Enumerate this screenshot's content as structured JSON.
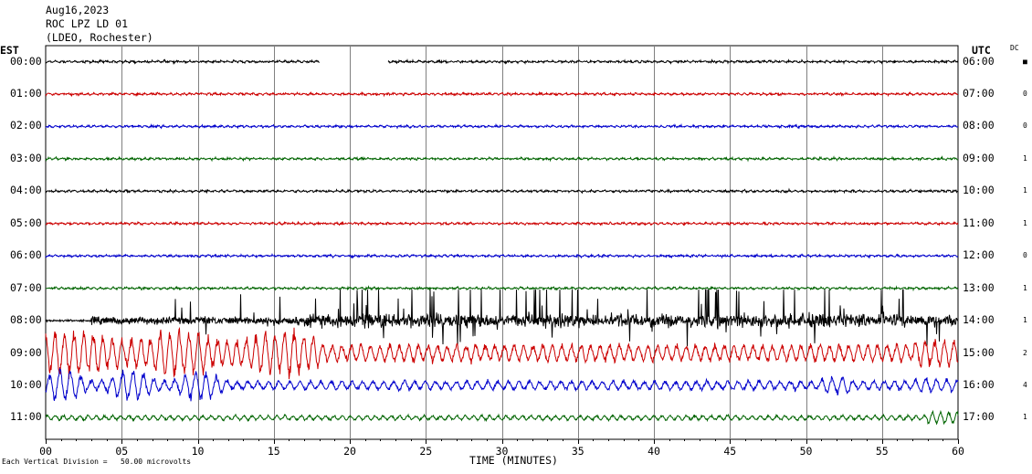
{
  "header": {
    "date": "Aug16,2023",
    "station": "ROC LPZ LD 01",
    "network": "(LDEO, Rochester)"
  },
  "left_zone_label": "EST",
  "right_zone_label": "UTC",
  "dc_header": "DC",
  "footnote": "Each Vertical Division =   50.00 microvolts",
  "chart_data": {
    "type": "line",
    "title": "ROC LPZ LD 01",
    "xlabel": "TIME (MINUTES)",
    "xlim": [
      0,
      60
    ],
    "x_ticks": [
      "00",
      "05",
      "10",
      "15",
      "20",
      "25",
      "30",
      "35",
      "40",
      "45",
      "50",
      "55",
      "60"
    ],
    "grid": true,
    "vertical_division_microvolts": 50.0,
    "traces": [
      {
        "est": "00:00",
        "utc": "06:00",
        "dc": "■",
        "color": "#000000",
        "gap": [
          18,
          22.5
        ],
        "activity": "quiet"
      },
      {
        "est": "01:00",
        "utc": "07:00",
        "dc": "0",
        "color": "#cc0000",
        "activity": "quiet"
      },
      {
        "est": "02:00",
        "utc": "08:00",
        "dc": "0",
        "color": "#0000cc",
        "activity": "quiet"
      },
      {
        "est": "03:00",
        "utc": "09:00",
        "dc": "1",
        "color": "#006400",
        "activity": "quiet"
      },
      {
        "est": "04:00",
        "utc": "10:00",
        "dc": "1",
        "color": "#000000",
        "activity": "quiet"
      },
      {
        "est": "05:00",
        "utc": "11:00",
        "dc": "1",
        "color": "#cc0000",
        "activity": "quiet"
      },
      {
        "est": "06:00",
        "utc": "12:00",
        "dc": "0",
        "color": "#0000cc",
        "activity": "quiet"
      },
      {
        "est": "07:00",
        "utc": "13:00",
        "dc": "1",
        "color": "#006400",
        "activity": "quiet"
      },
      {
        "est": "08:00",
        "utc": "14:00",
        "dc": "1",
        "color": "#000000",
        "activity": "spiky"
      },
      {
        "est": "09:00",
        "utc": "15:00",
        "dc": "2",
        "color": "#cc0000",
        "activity": "noisy"
      },
      {
        "est": "10:00",
        "utc": "16:00",
        "dc": "4",
        "color": "#0000cc",
        "activity": "moderate"
      },
      {
        "est": "11:00",
        "utc": "17:00",
        "dc": "1",
        "color": "#006400",
        "activity": "light"
      }
    ]
  }
}
